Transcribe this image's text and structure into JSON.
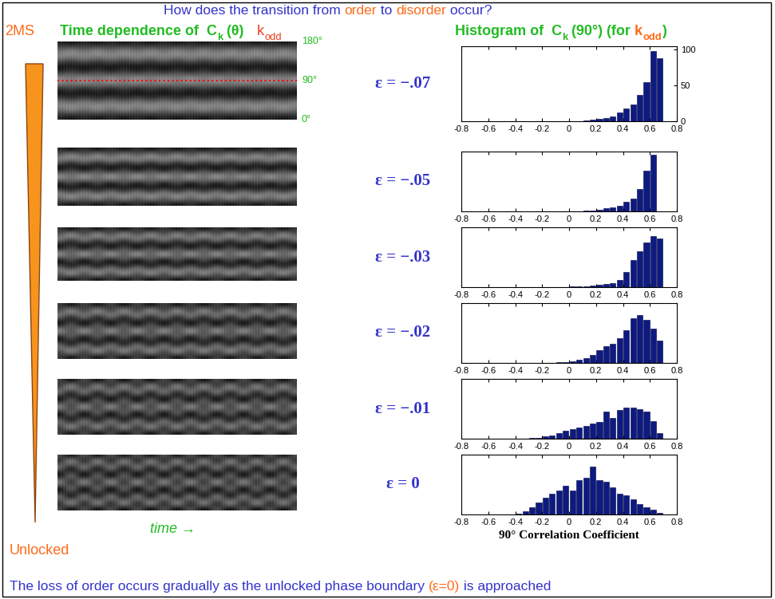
{
  "title": [
    {
      "text": "How does the transition from ",
      "color": "#3333cc"
    },
    {
      "text": "order",
      "color": "#ff6a1a"
    },
    {
      "text": " to ",
      "color": "#3333cc"
    },
    {
      "text": "disorder",
      "color": "#ff6a1a"
    },
    {
      "text": " occur?",
      "color": "#3333cc"
    }
  ],
  "caption": [
    {
      "text": "The loss of order occurs gradually as the unlocked phase boundary ",
      "color": "#3333cc"
    },
    {
      "text": "(ε=0)",
      "color": "#ff6a1a"
    },
    {
      "text": " is approached",
      "color": "#3333cc"
    }
  ],
  "left_panel": {
    "heading": [
      {
        "text": "Time dependence of  C",
        "color": "#22bb22"
      },
      {
        "text": "k",
        "color": "#22bb22",
        "sub": true
      },
      {
        "text": " (θ)",
        "color": "#22bb22"
      }
    ],
    "k_label": [
      {
        "text": "k",
        "color": "#e8401a"
      },
      {
        "text": "odd",
        "color": "#e8401a",
        "sub": true
      }
    ],
    "angle_labels": [
      "180°",
      "90°",
      "0°"
    ],
    "scale_top": "2MS",
    "scale_bottom": "Unlocked",
    "time_label": "time →"
  },
  "histogram_heading": [
    {
      "text": "Histogram of  C",
      "color": "#22bb22"
    },
    {
      "text": "k",
      "color": "#22bb22",
      "sub": true
    },
    {
      "text": " (90°) (for ",
      "color": "#22bb22"
    },
    {
      "text": "k",
      "color": "#ff6a1a"
    },
    {
      "text": "odd",
      "color": "#ff6a1a",
      "sub": true
    },
    {
      "text": ")",
      "color": "#22bb22"
    }
  ],
  "chart_data": [
    {
      "type": "histogram",
      "title": "ε = −.07",
      "color": "#0d1a80",
      "bins": [
        0.1,
        0.15,
        0.2,
        0.25,
        0.3,
        0.35,
        0.4,
        0.45,
        0.5,
        0.55,
        0.6,
        0.65,
        0.7
      ],
      "values": [
        1,
        2,
        3,
        5,
        7,
        12,
        18,
        24,
        37,
        55,
        98,
        88
      ],
      "xlim": [
        -0.8,
        0.8
      ],
      "xticks": [
        -0.8,
        -0.6,
        -0.4,
        -0.2,
        0,
        0.2,
        0.4,
        0.6,
        0.8
      ],
      "ylim": [
        0,
        105
      ],
      "yticks": [
        0,
        50,
        100
      ]
    },
    {
      "type": "histogram",
      "title": "ε = −.05",
      "color": "#0d1a80",
      "bins": [
        0.1,
        0.15,
        0.2,
        0.25,
        0.3,
        0.35,
        0.4,
        0.45,
        0.5,
        0.55,
        0.6,
        0.65
      ],
      "values": [
        1,
        2,
        3,
        5,
        7,
        10,
        16,
        22,
        38,
        68,
        95
      ],
      "xlim": [
        -0.8,
        0.8
      ],
      "xticks": [
        -0.8,
        -0.6,
        -0.4,
        -0.2,
        0,
        0.2,
        0.4,
        0.6,
        0.8
      ],
      "ylim": [
        0,
        100
      ],
      "tick_labels": "x"
    },
    {
      "type": "histogram",
      "title": "ε = −.03",
      "color": "#0d1a80",
      "bins": [
        0,
        0.05,
        0.1,
        0.15,
        0.2,
        0.25,
        0.3,
        0.35,
        0.4,
        0.45,
        0.5,
        0.55,
        0.6,
        0.65,
        0.7
      ],
      "values": [
        1,
        1,
        2,
        3,
        4,
        5,
        7,
        12,
        25,
        45,
        60,
        75,
        85,
        82
      ],
      "xlim": [
        -0.8,
        0.8
      ],
      "xticks": [
        -0.8,
        -0.6,
        -0.4,
        -0.2,
        0,
        0.2,
        0.4,
        0.6,
        0.8
      ],
      "ylim": [
        0,
        100
      ],
      "tick_labels": "x"
    },
    {
      "type": "histogram",
      "title": "ε = −.02",
      "color": "#0d1a80",
      "bins": [
        -0.1,
        -0.05,
        0,
        0.05,
        0.1,
        0.15,
        0.2,
        0.25,
        0.3,
        0.35,
        0.4,
        0.45,
        0.5,
        0.55,
        0.6,
        0.65,
        0.7
      ],
      "values": [
        1,
        2,
        3,
        5,
        8,
        14,
        22,
        28,
        32,
        42,
        55,
        75,
        80,
        72,
        58,
        38
      ],
      "xlim": [
        -0.8,
        0.8
      ],
      "xticks": [
        -0.8,
        -0.6,
        -0.4,
        -0.2,
        0,
        0.2,
        0.4,
        0.6,
        0.8
      ],
      "ylim": [
        0,
        100
      ],
      "tick_labels": "x"
    },
    {
      "type": "histogram",
      "title": "ε = −.01",
      "color": "#0d1a80",
      "bins": [
        -0.3,
        -0.25,
        -0.2,
        -0.15,
        -0.1,
        -0.05,
        0,
        0.05,
        0.1,
        0.15,
        0.2,
        0.25,
        0.3,
        0.35,
        0.4,
        0.45,
        0.5,
        0.55,
        0.6,
        0.65,
        0.7
      ],
      "values": [
        1,
        2,
        4,
        6,
        9,
        13,
        16,
        19,
        22,
        25,
        28,
        45,
        35,
        48,
        52,
        52,
        50,
        45,
        30,
        10
      ],
      "xlim": [
        -0.8,
        0.8
      ],
      "xticks": [
        -0.8,
        -0.6,
        -0.4,
        -0.2,
        0,
        0.2,
        0.4,
        0.6,
        0.8
      ],
      "ylim": [
        0,
        100
      ],
      "tick_labels": "x"
    },
    {
      "type": "histogram",
      "title": "ε = 0",
      "color": "#0d1a80",
      "bins": [
        -0.4,
        -0.35,
        -0.3,
        -0.25,
        -0.2,
        -0.15,
        -0.1,
        -0.05,
        0,
        0.05,
        0.1,
        0.15,
        0.2,
        0.25,
        0.3,
        0.35,
        0.4,
        0.45,
        0.5,
        0.55,
        0.6,
        0.65,
        0.7
      ],
      "values": [
        1,
        5,
        12,
        20,
        28,
        35,
        40,
        48,
        40,
        58,
        62,
        80,
        58,
        55,
        45,
        35,
        32,
        25,
        18,
        12,
        8,
        3
      ],
      "xlim": [
        -0.8,
        0.8
      ],
      "xticks": [
        -0.8,
        -0.6,
        -0.4,
        -0.2,
        0,
        0.2,
        0.4,
        0.6,
        0.8
      ],
      "ylim": [
        0,
        100
      ],
      "tick_labels": "x",
      "xlabel": "90° Correlation Coefficient"
    }
  ]
}
